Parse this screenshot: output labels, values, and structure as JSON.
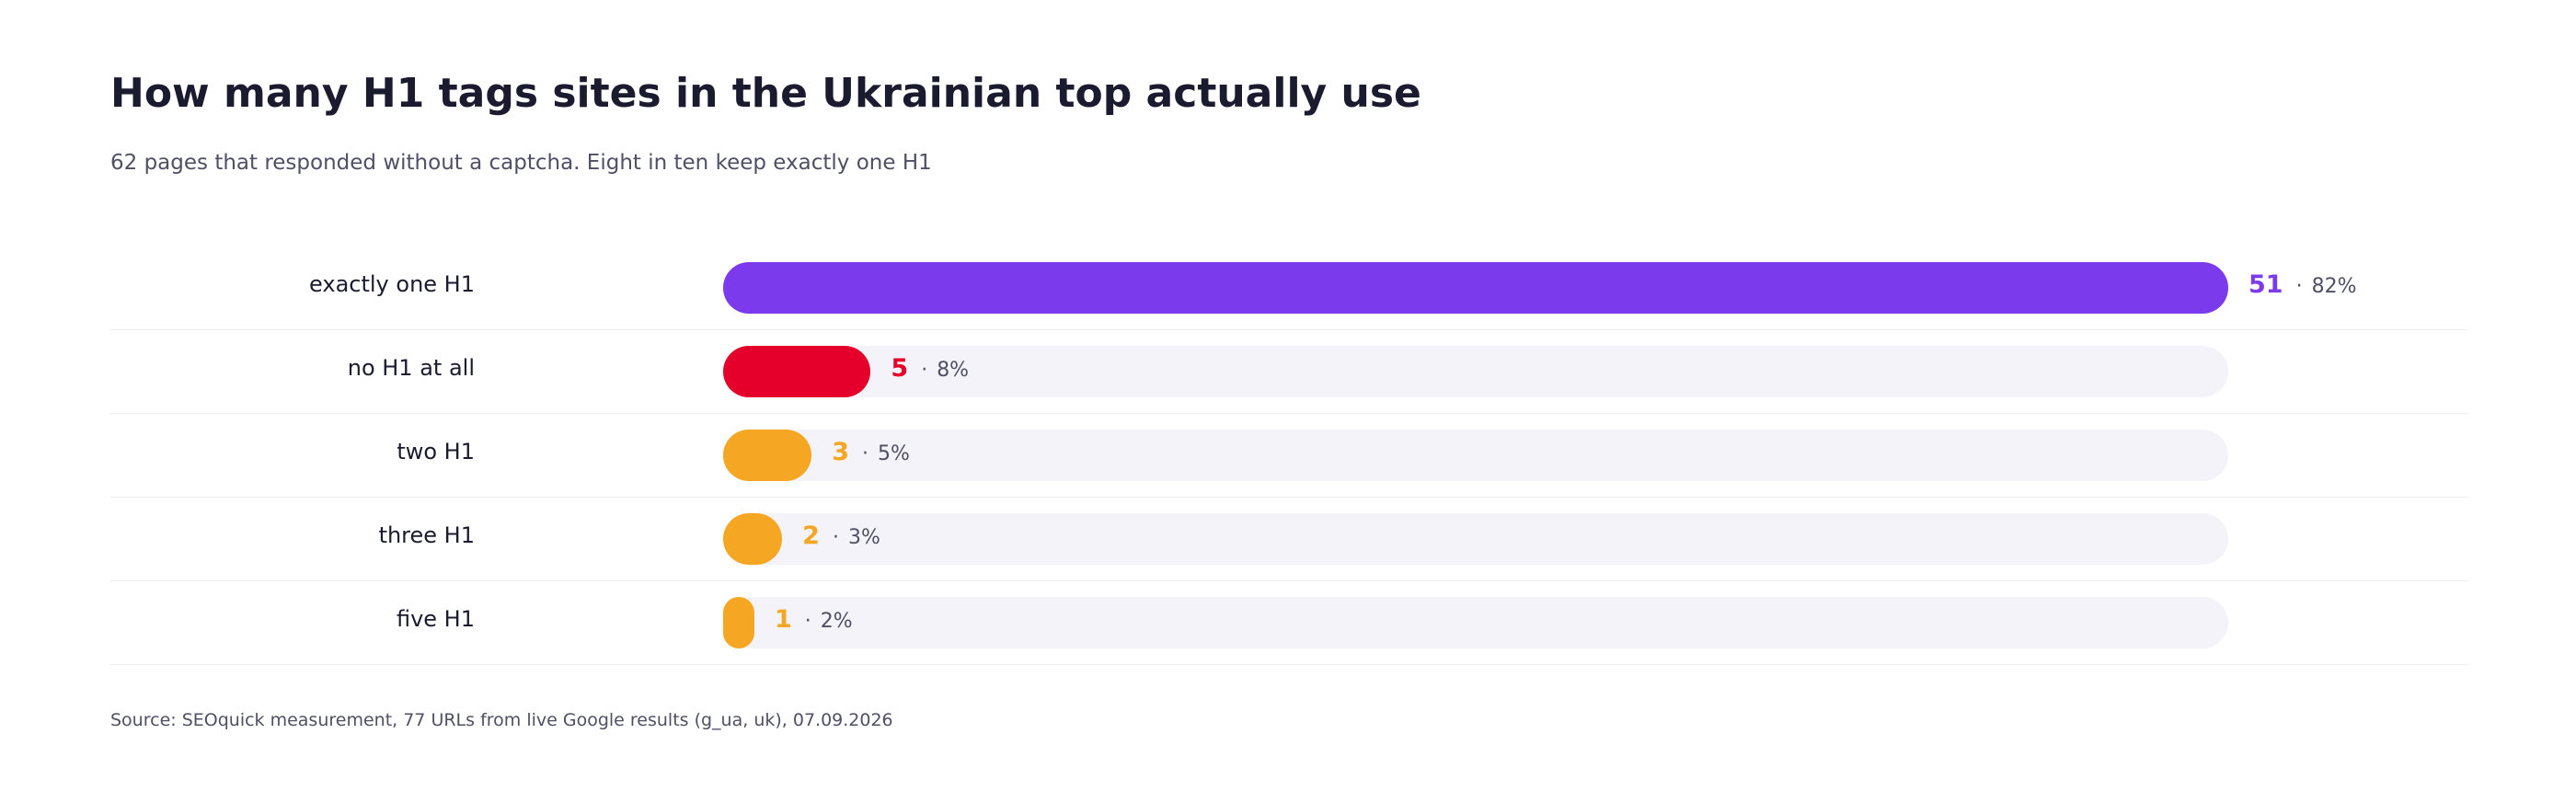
{
  "chart": {
    "title": "How many H1 tags sites in the Ukrainian top actually use",
    "subtitle": "62 pages that responded without a captcha. Eight in ten keep exactly one H1",
    "source": "Source: SEOquick measurement, 77 URLs from live Google results (g_ua, uk), 07.09.2026",
    "separator": "·"
  },
  "colors": {
    "purple": "#7c3aed",
    "red": "#e4002b",
    "orange": "#f5a623",
    "track": "#f4f3f9"
  },
  "chart_data": {
    "type": "bar",
    "orientation": "horizontal",
    "title": "How many H1 tags sites in the Ukrainian top actually use",
    "subtitle": "62 pages that responded without a captcha. Eight in ten keep exactly one H1",
    "total": 62,
    "xlim": [
      0,
      51
    ],
    "grid": false,
    "legend": "none",
    "categories": [
      "exactly one H1",
      "no H1 at all",
      "two H1",
      "three H1",
      "five H1"
    ],
    "values": [
      51,
      5,
      3,
      2,
      1
    ],
    "percent_labels": [
      "82%",
      "8%",
      "5%",
      "3%",
      "2%"
    ],
    "colors": [
      "#7c3aed",
      "#e4002b",
      "#f5a623",
      "#f5a623",
      "#f5a623"
    ]
  }
}
